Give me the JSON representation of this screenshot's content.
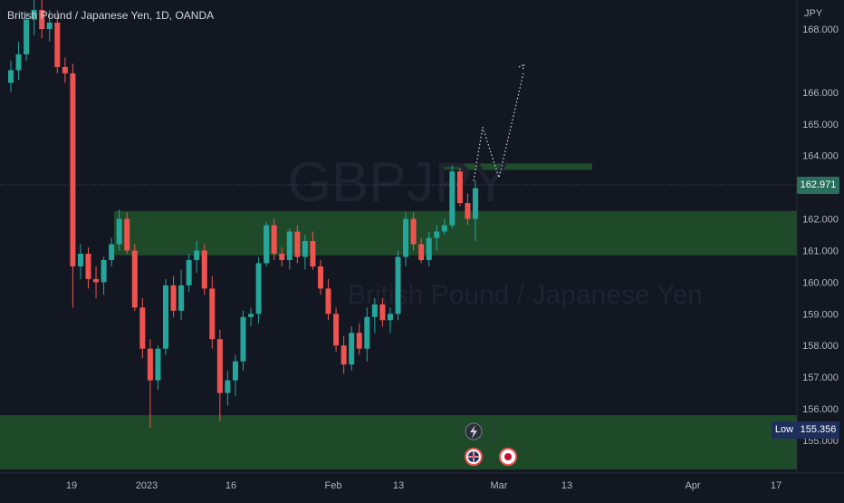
{
  "header": {
    "symbol_title": "British Pound / Japanese Yen, 1D, OANDA",
    "currency": "JPY"
  },
  "watermark": {
    "ticker": "GBPJPY",
    "name": "British Pound / Japanese Yen"
  },
  "price_axis": {
    "ticks": [
      "168.000",
      "166.000",
      "165.000",
      "164.000",
      "162.000",
      "161.000",
      "160.000",
      "159.000",
      "158.000",
      "157.000",
      "156.000",
      "155.000"
    ],
    "last_price": "162.971",
    "low_label": "Low",
    "low_value": "155.356"
  },
  "time_axis": {
    "ticks": [
      "19",
      "2023",
      "16",
      "Feb",
      "13",
      "Mar",
      "13",
      "Apr",
      "17"
    ]
  },
  "colors": {
    "background": "#131722",
    "up": "#26a69a",
    "down": "#ef5350",
    "zone": "#1e4a2a",
    "zone_border": "#2d6b3a"
  },
  "icons": [
    "lightning-icon",
    "uk-flag-icon",
    "japan-flag-icon"
  ],
  "chart_data": {
    "type": "candlestick",
    "title": "British Pound / Japanese Yen, 1D, OANDA",
    "y_unit": "JPY",
    "ylim": [
      154.4,
      168.6
    ],
    "grid": false,
    "candles": [
      [
        166.3,
        167.0,
        166.0,
        166.7
      ],
      [
        166.7,
        167.6,
        166.4,
        167.2
      ],
      [
        167.2,
        168.5,
        167.0,
        168.3
      ],
      [
        168.3,
        169.0,
        167.8,
        168.6
      ],
      [
        168.6,
        169.2,
        167.7,
        168.0
      ],
      [
        168.0,
        168.6,
        167.6,
        168.2
      ],
      [
        168.2,
        168.6,
        166.6,
        166.8
      ],
      [
        166.8,
        167.1,
        166.3,
        166.6
      ],
      [
        166.6,
        166.9,
        159.2,
        160.5
      ],
      [
        160.5,
        161.2,
        160.1,
        160.9
      ],
      [
        160.9,
        161.1,
        159.8,
        160.1
      ],
      [
        160.1,
        160.5,
        159.5,
        160.0
      ],
      [
        160.0,
        160.8,
        159.6,
        160.7
      ],
      [
        160.7,
        161.4,
        160.5,
        161.2
      ],
      [
        161.2,
        162.3,
        161.0,
        162.0
      ],
      [
        162.0,
        162.2,
        160.9,
        161.0
      ],
      [
        161.0,
        161.2,
        159.1,
        159.2
      ],
      [
        159.2,
        159.5,
        157.6,
        157.9
      ],
      [
        157.9,
        158.2,
        155.4,
        156.9
      ],
      [
        156.9,
        158.0,
        156.6,
        157.9
      ],
      [
        157.9,
        160.1,
        157.7,
        159.9
      ],
      [
        159.9,
        160.2,
        158.9,
        159.1
      ],
      [
        159.1,
        160.4,
        158.8,
        159.9
      ],
      [
        159.9,
        160.9,
        159.7,
        160.7
      ],
      [
        160.7,
        161.3,
        160.3,
        161.0
      ],
      [
        161.0,
        161.2,
        159.6,
        159.8
      ],
      [
        159.8,
        160.2,
        157.9,
        158.2
      ],
      [
        158.2,
        158.5,
        155.6,
        156.5
      ],
      [
        156.5,
        157.2,
        156.1,
        156.9
      ],
      [
        156.9,
        157.7,
        156.4,
        157.5
      ],
      [
        157.5,
        159.1,
        157.2,
        158.9
      ],
      [
        158.9,
        159.2,
        158.6,
        159.0
      ],
      [
        159.0,
        160.8,
        158.7,
        160.6
      ],
      [
        160.6,
        161.9,
        160.5,
        161.8
      ],
      [
        161.8,
        162.0,
        160.7,
        160.9
      ],
      [
        160.9,
        161.1,
        160.5,
        160.7
      ],
      [
        160.7,
        161.7,
        160.4,
        161.6
      ],
      [
        161.6,
        161.8,
        160.6,
        160.8
      ],
      [
        160.8,
        161.5,
        160.4,
        161.3
      ],
      [
        161.3,
        161.6,
        160.4,
        160.5
      ],
      [
        160.5,
        160.7,
        159.6,
        159.8
      ],
      [
        159.8,
        160.1,
        158.8,
        159.0
      ],
      [
        159.0,
        159.2,
        157.8,
        158.0
      ],
      [
        158.0,
        158.3,
        157.1,
        157.4
      ],
      [
        157.4,
        158.6,
        157.2,
        158.4
      ],
      [
        158.4,
        158.7,
        157.7,
        157.9
      ],
      [
        157.9,
        159.2,
        157.5,
        158.9
      ],
      [
        158.9,
        159.5,
        158.4,
        159.3
      ],
      [
        159.3,
        159.5,
        158.6,
        158.8
      ],
      [
        158.8,
        159.2,
        158.4,
        159.0
      ],
      [
        159.0,
        161.0,
        158.8,
        160.8
      ],
      [
        160.8,
        162.2,
        160.5,
        162.0
      ],
      [
        162.0,
        162.2,
        161.0,
        161.2
      ],
      [
        161.2,
        161.4,
        160.6,
        160.7
      ],
      [
        160.7,
        161.6,
        160.5,
        161.4
      ],
      [
        161.4,
        161.8,
        161.0,
        161.6
      ],
      [
        161.6,
        162.0,
        161.5,
        161.8
      ],
      [
        161.8,
        163.7,
        161.7,
        163.5
      ],
      [
        163.5,
        163.6,
        162.4,
        162.5
      ],
      [
        162.5,
        162.8,
        161.8,
        162.0
      ],
      [
        162.0,
        163.2,
        161.3,
        162.97
      ]
    ],
    "resistance_zone": [
      163.55,
      163.75
    ],
    "support_zone": [
      160.85,
      162.25
    ],
    "low_zone": [
      154.4,
      155.8
    ],
    "projection": [
      163.2,
      164.9,
      163.3,
      166.6
    ]
  }
}
